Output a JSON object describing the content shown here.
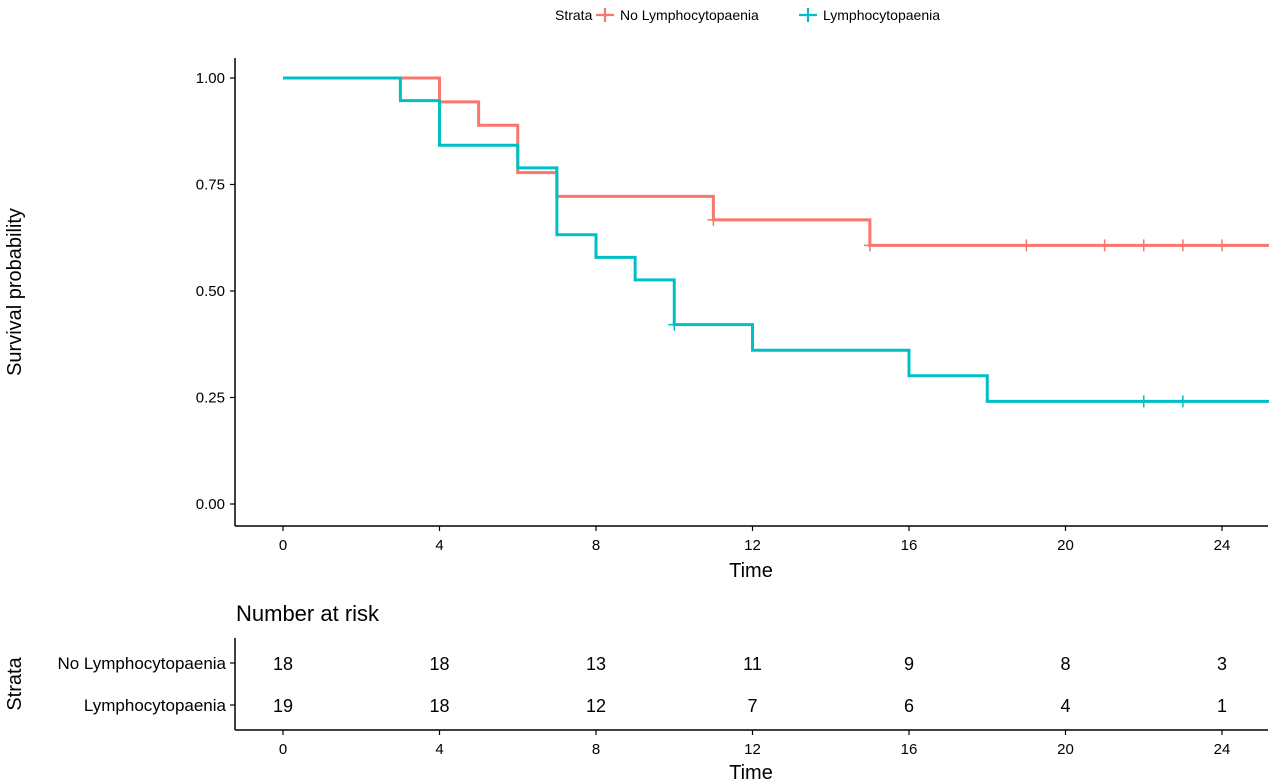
{
  "chart_data": {
    "type": "line",
    "step": true,
    "xlabel": "Time",
    "ylabel": "Survival probability",
    "xlim": [
      -1.2,
      25.2
    ],
    "ylim": [
      0,
      1
    ],
    "x_ticks": [
      0,
      4,
      8,
      12,
      16,
      20,
      24
    ],
    "x_tick_labels": [
      "0",
      "4",
      "8",
      "12",
      "16",
      "20",
      "24"
    ],
    "y_ticks": [
      0,
      0.25,
      0.5,
      0.75,
      1
    ],
    "y_tick_labels": [
      "0.00",
      "0.25",
      "0.50",
      "0.75",
      "1.00"
    ],
    "grid": false,
    "legend": {
      "title": "Strata",
      "position": "top"
    },
    "series": [
      {
        "name": "No Lymphocytopaenia",
        "color": "#F8766D",
        "time": [
          0,
          4,
          5,
          6,
          7,
          11,
          15
        ],
        "survival": [
          1.0,
          0.944,
          0.889,
          0.778,
          0.722,
          0.667,
          0.607
        ],
        "end_time": 25.2,
        "censored": [
          11,
          15,
          19,
          21,
          22,
          23,
          24
        ]
      },
      {
        "name": "Lymphocytopaenia",
        "color": "#00BFC4",
        "time": [
          0,
          3,
          4,
          6,
          7,
          8,
          9,
          10,
          12,
          16,
          18
        ],
        "survival": [
          1.0,
          0.947,
          0.842,
          0.789,
          0.632,
          0.579,
          0.526,
          0.421,
          0.361,
          0.301,
          0.241
        ],
        "end_time": 25.2,
        "censored": [
          10,
          22,
          23
        ]
      }
    ],
    "risk_table": {
      "title": "Number at risk",
      "ylabel": "Strata",
      "xlabel": "Time",
      "times": [
        0,
        4,
        8,
        12,
        16,
        20,
        24
      ],
      "rows": [
        {
          "name": "No Lymphocytopaenia",
          "color": "#F8766D",
          "values": [
            18,
            18,
            13,
            11,
            9,
            8,
            3
          ]
        },
        {
          "name": "Lymphocytopaenia",
          "color": "#00BFC4",
          "values": [
            19,
            18,
            12,
            7,
            6,
            4,
            1
          ]
        }
      ]
    }
  }
}
